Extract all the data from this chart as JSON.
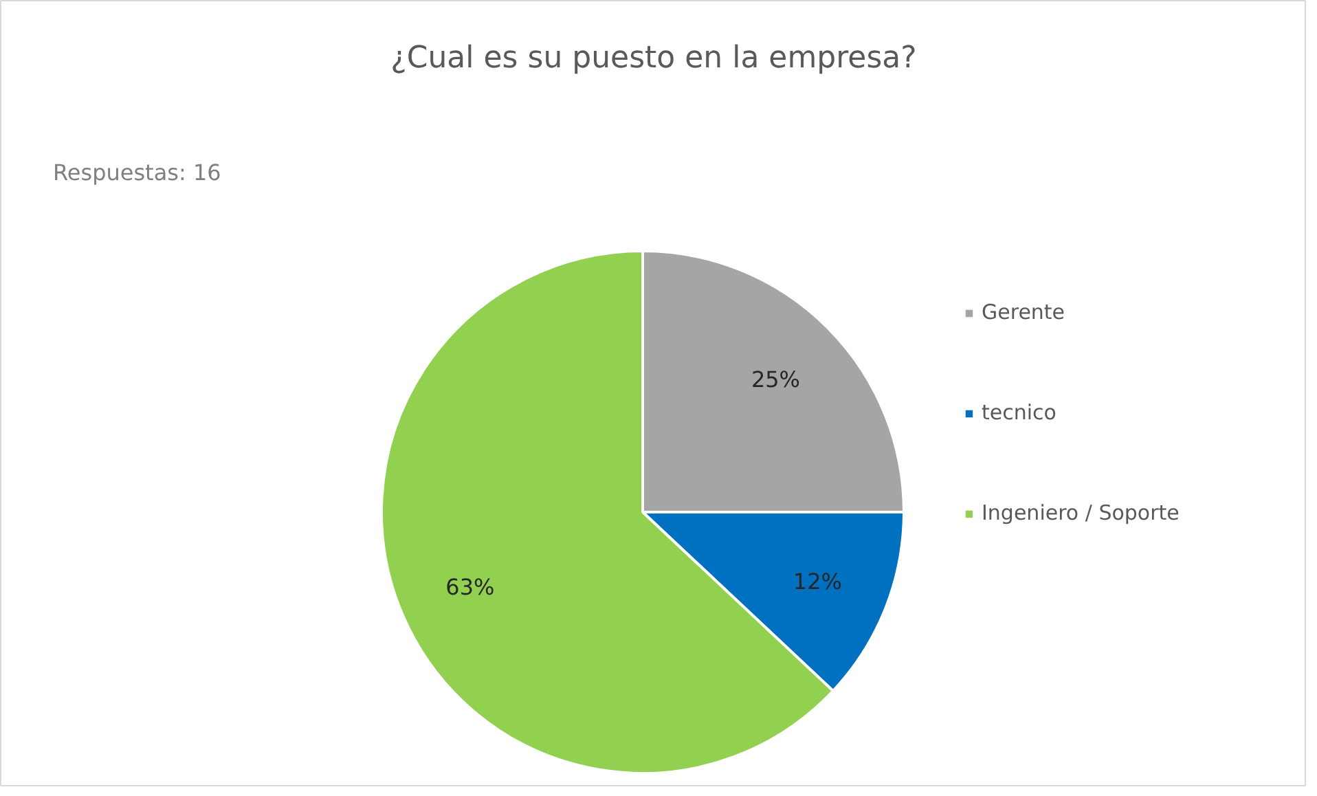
{
  "chart_data": {
    "type": "pie",
    "title": "¿Cual es su puesto en la empresa?",
    "annotations": [
      "Respuestas: 16"
    ],
    "categories": [
      "Gerente",
      "tecnico",
      "Ingeniero / Soporte"
    ],
    "values": [
      25,
      12,
      63
    ],
    "colors": [
      "#a5a5a5",
      "#0070c0",
      "#92d050"
    ],
    "value_labels": [
      "25%",
      "12%",
      "63%"
    ],
    "legend": "right"
  }
}
